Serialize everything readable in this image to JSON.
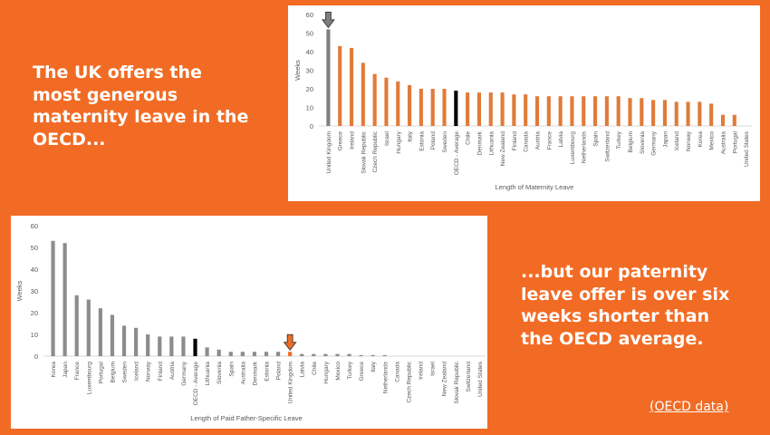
{
  "headline_top": "The UK offers the most generous maternity leave in the OECD...",
  "headline_bottom": "...but our paternity leave offer is over six weeks shorter than the OECD average.",
  "source_link": "(OECD data)",
  "colors": {
    "background": "#f26b24",
    "bar_default": "#e07b39",
    "bar_uk": "#7f7f7f",
    "bar_average": "#000000",
    "bar_paternity": "#8c8c8c",
    "bar_uk_paternity": "#f26b24",
    "arrow_gray": "#7f7f7f",
    "arrow_orange": "#f26b24"
  },
  "chart_data": [
    {
      "type": "bar",
      "title": "",
      "xlabel": "Length of Maternity Leave",
      "ylabel": "Weeks",
      "ylim": [
        0,
        60
      ],
      "yticks": [
        0,
        10,
        20,
        30,
        40,
        50,
        60
      ],
      "grid": false,
      "highlight_arrow": "United Kingdom",
      "categories": [
        "United Kingdom",
        "Greece",
        "Ireland",
        "Slovak Republic",
        "Czech Republic",
        "Israel",
        "Hungary",
        "Italy",
        "Estonia",
        "Poland",
        "Sweden",
        "OECD - Average",
        "Chile",
        "Denmark",
        "Lithuania",
        "New Zealand",
        "Finland",
        "Canada",
        "Austria",
        "France",
        "Latvia",
        "Luxembourg",
        "Netherlands",
        "Spain",
        "Switzerland",
        "Turkey",
        "Belgium",
        "Slovenia",
        "Germany",
        "Japan",
        "Iceland",
        "Norway",
        "Korea",
        "Mexico",
        "Australia",
        "Portugal",
        "United States"
      ],
      "values": [
        52,
        43,
        42,
        34,
        28,
        26,
        24,
        22,
        20,
        20,
        20,
        19,
        18,
        18,
        18,
        18,
        17,
        17,
        16,
        16,
        16,
        16,
        16,
        16,
        16,
        16,
        15,
        15,
        14,
        14,
        13,
        13,
        13,
        12,
        6,
        6,
        0
      ],
      "bar_colors": [
        "#7f7f7f",
        "#e07b39",
        "#e07b39",
        "#e07b39",
        "#e07b39",
        "#e07b39",
        "#e07b39",
        "#e07b39",
        "#e07b39",
        "#e07b39",
        "#e07b39",
        "#000000",
        "#e07b39",
        "#e07b39",
        "#e07b39",
        "#e07b39",
        "#e07b39",
        "#e07b39",
        "#e07b39",
        "#e07b39",
        "#e07b39",
        "#e07b39",
        "#e07b39",
        "#e07b39",
        "#e07b39",
        "#e07b39",
        "#e07b39",
        "#e07b39",
        "#e07b39",
        "#e07b39",
        "#e07b39",
        "#e07b39",
        "#e07b39",
        "#e07b39",
        "#e07b39",
        "#e07b39",
        "#e07b39"
      ]
    },
    {
      "type": "bar",
      "title": "",
      "xlabel": "Length of Paid Father-Specific Leave",
      "ylabel": "Weeks",
      "ylim": [
        0,
        60
      ],
      "yticks": [
        0,
        10,
        20,
        30,
        40,
        50,
        60
      ],
      "grid": false,
      "highlight_arrow": "United Kingdom",
      "categories": [
        "Korea",
        "Japan",
        "France",
        "Luxembourg",
        "Portugal",
        "Belgium",
        "Sweden",
        "Iceland",
        "Norway",
        "Finland",
        "Austria",
        "Germany",
        "OECD - Average",
        "Lithuania",
        "Slovenia",
        "Spain",
        "Australia",
        "Denmark",
        "Estonia",
        "Poland",
        "United Kingdom",
        "Latvia",
        "Chile",
        "Hungary",
        "Mexico",
        "Turkey",
        "Greece",
        "Italy",
        "Netherlands",
        "Canada",
        "Czech Republic",
        "Ireland",
        "Israel",
        "New Zealand",
        "Slovak Republic",
        "Switzerland",
        "United States"
      ],
      "values": [
        53,
        52,
        28,
        26,
        22,
        19,
        14,
        13,
        10,
        9,
        9,
        9,
        8,
        4,
        3,
        2,
        2,
        2,
        2,
        2,
        2,
        1,
        1,
        1,
        1,
        1,
        0.5,
        0.5,
        0.5,
        0,
        0,
        0,
        0,
        0,
        0,
        0,
        0
      ],
      "bar_colors": [
        "#8c8c8c",
        "#8c8c8c",
        "#8c8c8c",
        "#8c8c8c",
        "#8c8c8c",
        "#8c8c8c",
        "#8c8c8c",
        "#8c8c8c",
        "#8c8c8c",
        "#8c8c8c",
        "#8c8c8c",
        "#8c8c8c",
        "#000000",
        "#8c8c8c",
        "#8c8c8c",
        "#8c8c8c",
        "#8c8c8c",
        "#8c8c8c",
        "#8c8c8c",
        "#8c8c8c",
        "#f26b24",
        "#8c8c8c",
        "#8c8c8c",
        "#8c8c8c",
        "#8c8c8c",
        "#8c8c8c",
        "#8c8c8c",
        "#8c8c8c",
        "#8c8c8c",
        "#8c8c8c",
        "#8c8c8c",
        "#8c8c8c",
        "#8c8c8c",
        "#8c8c8c",
        "#8c8c8c",
        "#8c8c8c",
        "#8c8c8c"
      ]
    }
  ]
}
